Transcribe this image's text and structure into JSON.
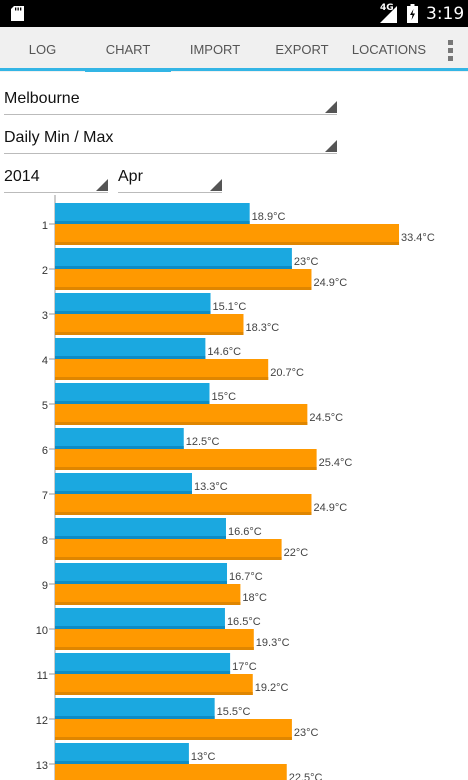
{
  "status_bar": {
    "network_type": "4G",
    "time": "3:19",
    "icons": [
      "sd-card-icon",
      "signal-icon",
      "battery-icon"
    ]
  },
  "tabs": [
    {
      "label": "LOG"
    },
    {
      "label": "CHART"
    },
    {
      "label": "IMPORT"
    },
    {
      "label": "EXPORT"
    },
    {
      "label": "LOCATIONS"
    }
  ],
  "selected_tab": "CHART",
  "overflow_icon": "overflow-menu-icon",
  "controls": {
    "location": "Melbourne",
    "chart_type": "Daily Min / Max",
    "year": "2014",
    "month": "Apr"
  },
  "colors": {
    "accent": "#33b5e5",
    "min_bar": "#1ba8e0",
    "max_bar": "#ff9900",
    "tab_bar_bg": "#f0f0f0",
    "status_bar_bg": "#000000"
  },
  "chart_data": {
    "type": "bar",
    "orientation": "horizontal",
    "categories": [
      "1",
      "2",
      "3",
      "4",
      "5",
      "6",
      "7",
      "8",
      "9",
      "10",
      "11",
      "12",
      "13"
    ],
    "series": [
      {
        "values": [
          18.9,
          23,
          15.1,
          14.6,
          15,
          12.5,
          13.3,
          16.6,
          16.7,
          16.5,
          17,
          15.5,
          13
        ],
        "labels": [
          "18.9°C",
          "23°C",
          "15.1°C",
          "14.6°C",
          "15°C",
          "12.5°C",
          "13.3°C",
          "16.6°C",
          "16.7°C",
          "16.5°C",
          "17°C",
          "15.5°C",
          "13°C"
        ]
      },
      {
        "values": [
          33.4,
          24.9,
          18.3,
          20.7,
          24.5,
          25.4,
          24.9,
          22,
          18,
          19.3,
          19.2,
          23,
          22.5
        ],
        "labels": [
          "33.4°C",
          "24.9°C",
          "18.3°C",
          "20.7°C",
          "24.5°C",
          "25.4°C",
          "24.9°C",
          "22°C",
          "18°C",
          "19.3°C",
          "19.2°C",
          "23°C",
          "22.5°C"
        ]
      }
    ],
    "unit": "°C",
    "xlim": [
      0,
      35
    ],
    "grid": false,
    "legend": "none"
  }
}
